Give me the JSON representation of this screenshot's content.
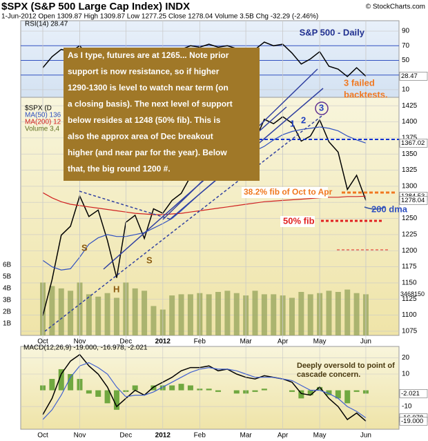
{
  "header": {
    "title": "$SPX (S&P 500 Large Cap Index) INDX",
    "copyright": "© StockCharts.com",
    "quote": "1-Jun-2012  Open 1309.87  High 1309.87  Low 1277.25  Close 1278.04  Volume 3.5B  Chg -32.29 (-2.46%)"
  },
  "chart_data": [
    {
      "type": "line",
      "legend": "RSI(14) 28.47",
      "subtitle": "S&P 500 - Daily",
      "series": [
        {
          "color": "#000000",
          "values": [
            40,
            55,
            65,
            62,
            70,
            55,
            58,
            45,
            35,
            55,
            58,
            48,
            57,
            55,
            62,
            65,
            70,
            68,
            72,
            68,
            70,
            66,
            62,
            65,
            75,
            70,
            72,
            60,
            45,
            52,
            62,
            42,
            38,
            28,
            40,
            28.47
          ]
        }
      ],
      "ylim": [
        0,
        100
      ],
      "yticks": [
        10,
        30,
        50,
        70,
        90
      ],
      "levels": [
        30,
        50,
        70
      ],
      "markers": [
        {
          "value": 28.47,
          "label": "28.47"
        }
      ]
    },
    {
      "type": "line",
      "categories": [
        "Oct",
        null,
        null,
        null,
        "Nov",
        null,
        null,
        null,
        null,
        "Dec",
        null,
        null,
        null,
        "2012",
        null,
        null,
        null,
        "Feb",
        null,
        null,
        null,
        null,
        "Mar",
        null,
        null,
        null,
        "Apr",
        null,
        null,
        null,
        "May",
        null,
        null,
        null,
        null,
        "Jun"
      ],
      "series": [
        {
          "name": "$SPX (D",
          "color": "#000000",
          "values": [
            1099,
            1155,
            1224,
            1238,
            1285,
            1253,
            1263,
            1216,
            1158,
            1244,
            1255,
            1219,
            1265,
            1258,
            1278,
            1289,
            1315,
            1316,
            1344,
            1342,
            1361,
            1365,
            1370,
            1371,
            1404,
            1397,
            1408,
            1398,
            1370,
            1378,
            1403,
            1369,
            1353,
            1295,
            1317,
            1278.04
          ]
        },
        {
          "name": "MA(50) 136",
          "color": "#3050c0",
          "values": [
            1185,
            1175,
            1170,
            1172,
            1190,
            1210,
            1220,
            1225,
            1222,
            1222,
            1225,
            1228,
            1235,
            1242,
            1250,
            1262,
            1275,
            1288,
            1300,
            1312,
            1325,
            1335,
            1345,
            1355,
            1362,
            1372,
            1380,
            1385,
            1388,
            1390,
            1392,
            1390,
            1386,
            1378,
            1372,
            1367.02
          ]
        },
        {
          "name": "MA(200) 12",
          "color": "#d02020",
          "values": [
            1290,
            1282,
            1276,
            1272,
            1270,
            1268,
            1266,
            1264,
            1262,
            1260,
            1258,
            1257,
            1256,
            1256,
            1257,
            1258,
            1260,
            1262,
            1264,
            1266,
            1268,
            1270,
            1272,
            1274,
            1276,
            1277,
            1278,
            1279,
            1280,
            1281,
            1282,
            1283,
            1283,
            1284,
            1284,
            1284.53
          ]
        }
      ],
      "ylim": [
        1068.5,
        1437
      ],
      "yticks": [
        1075,
        1100,
        1125,
        1150,
        1175,
        1200,
        1225,
        1250,
        1275,
        1300,
        1325,
        1350,
        1375,
        1400,
        1425
      ],
      "volume": {
        "name": "Volume 3,4",
        "color": "#9aa860",
        "values": [
          4.5,
          4.2,
          4.0,
          3.8,
          4.5,
          3.5,
          3.3,
          3.6,
          3.2,
          4.5,
          4.0,
          3.8,
          2.5,
          2.2,
          3.4,
          3.5,
          3.5,
          3.6,
          3.5,
          3.7,
          3.8,
          3.6,
          3.4,
          3.8,
          3.5,
          3.5,
          3.4,
          3.2,
          3.7,
          3.5,
          3.6,
          3.8,
          3.7,
          3.9,
          3.6,
          3.5
        ],
        "vlim": [
          0,
          20.2
        ],
        "vticks": [
          {
            "value": 1,
            "label": "1B"
          },
          {
            "value": 2,
            "label": "2B"
          },
          {
            "value": 3,
            "label": "3B"
          },
          {
            "value": 4,
            "label": "4B"
          },
          {
            "value": 5,
            "label": "5B"
          },
          {
            "value": 6,
            "label": "6B"
          }
        ],
        "last_label": "3468150"
      },
      "markers": [
        {
          "value": 1367.02,
          "label": "1367.02"
        },
        {
          "value": 1284.53,
          "label": "1284.53"
        },
        {
          "value": 1278.04,
          "label": "1278.04"
        }
      ],
      "note": [
        "As I type, futures are at 1265... Note prior",
        "support is now resistance, so if higher",
        "1290-1300 is level to watch near term (on",
        "a closing basis). The next level of support",
        "below resides at 1248 (50% fib). This is",
        "also the approx area of Dec breakout",
        "higher (and near par for the year). Below",
        "that, the big round 1200 #."
      ],
      "callouts": {
        "failed1": "3 failed",
        "failed2": "backtests.",
        "fib38": "38.2% fib of Oct to Apr",
        "dma": "200 dma",
        "fib50": "50% fib",
        "s1": "S",
        "h": "H",
        "s2": "S",
        "w1": "1",
        "w2": "2",
        "w3": "3"
      }
    },
    {
      "type": "line",
      "legend": "MACD(12,26,9) -19.000, -16.978, -2.021",
      "categories": [
        "Oct",
        null,
        null,
        null,
        "Nov",
        null,
        null,
        null,
        null,
        "Dec",
        null,
        null,
        null,
        "2012",
        null,
        null,
        null,
        "Feb",
        null,
        null,
        null,
        null,
        "Mar",
        null,
        null,
        null,
        "Apr",
        null,
        null,
        null,
        "May",
        null,
        null,
        null,
        null,
        "Jun"
      ],
      "series": [
        {
          "color": "#000000",
          "values": [
            -15,
            -5,
            10,
            18,
            22,
            15,
            10,
            2,
            -10,
            -5,
            0,
            -3,
            2,
            5,
            8,
            12,
            14,
            14,
            15,
            12,
            13,
            10,
            8,
            7,
            9,
            8,
            7,
            5,
            -2,
            -3,
            2,
            -5,
            -10,
            -18,
            -14,
            -19
          ]
        },
        {
          "color": "#4060d0",
          "values": [
            -18,
            -12,
            -3,
            8,
            15,
            17,
            14,
            10,
            2,
            -4,
            -3,
            -3,
            -1,
            2,
            5,
            8,
            11,
            13,
            14,
            13,
            13,
            12,
            10,
            8,
            8,
            8,
            7,
            6,
            3,
            0,
            0,
            -2,
            -5,
            -10,
            -13,
            -16.978
          ]
        }
      ],
      "histogram": {
        "color": "#70a840",
        "values": [
          3,
          7,
          13,
          10,
          7,
          -2,
          -4,
          -8,
          -12,
          -1,
          3,
          0,
          3,
          3,
          3,
          4,
          3,
          1,
          1,
          -1,
          0,
          -2,
          -2,
          -1,
          1,
          0,
          0,
          -1,
          -5,
          -3,
          2,
          -3,
          -5,
          -8,
          -1,
          -2.021
        ]
      },
      "ylim": [
        -24,
        27
      ],
      "yticks": [
        20,
        10,
        -10
      ],
      "markers": [
        {
          "value": -2.021,
          "label": "-2.021"
        },
        {
          "value": -16.978,
          "label": "-16.978"
        },
        {
          "value": -19,
          "label": "-19.000"
        }
      ],
      "note": [
        "Deeply oversold to point of",
        "cascade concern."
      ]
    }
  ]
}
